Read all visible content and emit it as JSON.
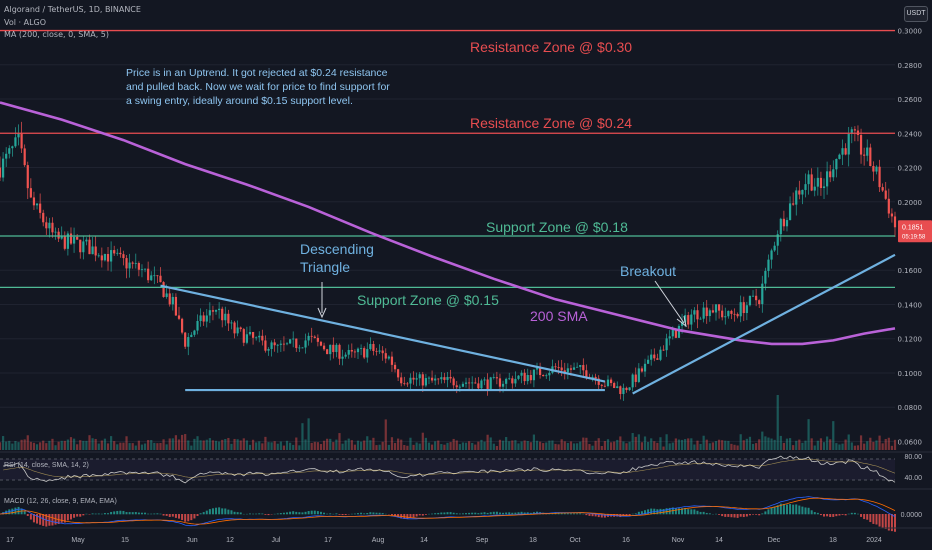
{
  "header": {
    "symbol_line": "Algorand / TetherUS, 1D, BINANCE",
    "vol_line": "Vol · ALGO",
    "ma_line": "MA (200, close, 0, SMA, 5)",
    "quote_badge": "USDT"
  },
  "annotations": {
    "note": [
      "Price is in an Uptrend. It got rejected at $0.24 resistance",
      "and pulled back. Now we wait for price to find support for",
      "a swing entry, ideally around $0.15 support level."
    ],
    "resistance_030": "Resistance Zone @ $0.30",
    "resistance_024": "Resistance Zone @ $0.24",
    "support_018": "Support Zone @ $0.18",
    "support_015": "Support Zone @ $0.15",
    "triangle": [
      "Descending",
      "Triangle"
    ],
    "breakout": "Breakout",
    "sma_label": "200 SMA"
  },
  "colors": {
    "background": "#131722",
    "up": "#26a69a",
    "down": "#ef5350",
    "resistance": "#e84d50",
    "support": "#4fba95",
    "sma": "#b962d8",
    "trendline": "#6fb1e0",
    "note": "#8ec5f0"
  },
  "chart_data": {
    "type": "candlestick",
    "timeframe": "1D",
    "x_ticks": [
      "17",
      "May",
      "15",
      "Jun",
      "12",
      "Jul",
      "17",
      "Aug",
      "14",
      "Sep",
      "18",
      "Oct",
      "16",
      "Nov",
      "14",
      "Dec",
      "18",
      "2024"
    ],
    "price_axis": {
      "ticks": [
        "0.3000",
        "0.2800",
        "0.2600",
        "0.2400",
        "0.2200",
        "0.2000",
        "0.1800",
        "0.1600",
        "0.1400",
        "0.1200",
        "0.1000",
        "0.0800",
        "0.0600"
      ],
      "ylim": [
        0.055,
        0.305
      ]
    },
    "last_price": "0.1851",
    "countdown": "05:19:58",
    "levels": [
      {
        "price": 0.3,
        "kind": "resistance"
      },
      {
        "price": 0.24,
        "kind": "resistance"
      },
      {
        "price": 0.18,
        "kind": "support"
      },
      {
        "price": 0.15,
        "kind": "support"
      }
    ],
    "close_path": [
      [
        0,
        0.22
      ],
      [
        6,
        0.235
      ],
      [
        10,
        0.2
      ],
      [
        18,
        0.178
      ],
      [
        28,
        0.174
      ],
      [
        36,
        0.168
      ],
      [
        46,
        0.16
      ],
      [
        52,
        0.151
      ],
      [
        56,
        0.14
      ],
      [
        60,
        0.118
      ],
      [
        64,
        0.128
      ],
      [
        70,
        0.138
      ],
      [
        76,
        0.124
      ],
      [
        84,
        0.118
      ],
      [
        90,
        0.114
      ],
      [
        96,
        0.117
      ],
      [
        100,
        0.12
      ],
      [
        106,
        0.114
      ],
      [
        114,
        0.11
      ],
      [
        120,
        0.114
      ],
      [
        126,
        0.109
      ],
      [
        130,
        0.097
      ],
      [
        140,
        0.095
      ],
      [
        150,
        0.095
      ],
      [
        160,
        0.094
      ],
      [
        170,
        0.098
      ],
      [
        180,
        0.103
      ],
      [
        190,
        0.101
      ],
      [
        196,
        0.094
      ],
      [
        202,
        0.09
      ],
      [
        210,
        0.105
      ],
      [
        216,
        0.118
      ],
      [
        224,
        0.134
      ],
      [
        230,
        0.138
      ],
      [
        236,
        0.133
      ],
      [
        242,
        0.14
      ],
      [
        246,
        0.144
      ],
      [
        252,
        0.184
      ],
      [
        258,
        0.205
      ],
      [
        262,
        0.214
      ],
      [
        266,
        0.207
      ],
      [
        270,
        0.223
      ],
      [
        276,
        0.238
      ],
      [
        281,
        0.226
      ],
      [
        284,
        0.216
      ],
      [
        288,
        0.197
      ],
      [
        290,
        0.1851
      ]
    ],
    "sma_path": [
      [
        0,
        0.258
      ],
      [
        20,
        0.248
      ],
      [
        40,
        0.236
      ],
      [
        60,
        0.222
      ],
      [
        80,
        0.21
      ],
      [
        100,
        0.197
      ],
      [
        120,
        0.182
      ],
      [
        140,
        0.168
      ],
      [
        160,
        0.155
      ],
      [
        180,
        0.143
      ],
      [
        200,
        0.134
      ],
      [
        220,
        0.125
      ],
      [
        240,
        0.119
      ],
      [
        250,
        0.117
      ],
      [
        260,
        0.117
      ],
      [
        270,
        0.119
      ],
      [
        280,
        0.123
      ],
      [
        290,
        0.126
      ]
    ],
    "trendlines": {
      "triangle_top": [
        [
          52,
          0.151
        ],
        [
          196,
          0.095
        ]
      ],
      "triangle_base": [
        [
          60,
          0.09
        ],
        [
          196,
          0.09
        ]
      ],
      "uptrend": [
        [
          205,
          0.088
        ],
        [
          290,
          0.169
        ]
      ]
    },
    "rsi": {
      "label": "RSI (14, close, SMA, 14, 2)",
      "ticks": [
        "80.00",
        "40.00"
      ]
    },
    "macd": {
      "label": "MACD (12, 26, close, 9, EMA, EMA)",
      "ticks": [
        "0.0000"
      ]
    }
  }
}
